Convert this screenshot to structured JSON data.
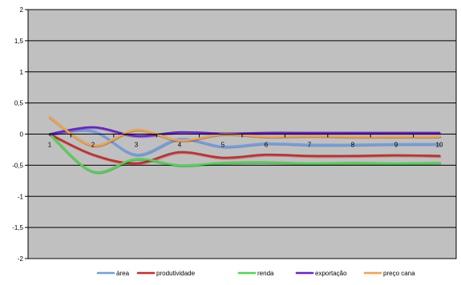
{
  "chart_data": {
    "type": "line",
    "title": "",
    "xlabel": "",
    "ylabel": "",
    "ylim": [
      -2,
      2
    ],
    "yticks": [
      "2",
      "1,5",
      "1",
      "0,5",
      "0",
      "-0,5",
      "-1",
      "-1,5",
      "-2"
    ],
    "categories": [
      "1",
      "2",
      "3",
      "4",
      "5",
      "6",
      "7",
      "8",
      "9",
      "10"
    ],
    "grid": true,
    "plot_background": "#c0c0c0",
    "legend_position": "bottom",
    "series": [
      {
        "name": "área",
        "color": "#6d9eeb",
        "values": [
          0,
          0.05,
          -0.33,
          -0.08,
          -0.2,
          -0.15,
          -0.17,
          -0.17,
          -0.16,
          -0.16
        ]
      },
      {
        "name": "produtividade",
        "color": "#cc2a2a",
        "values": [
          0,
          -0.33,
          -0.47,
          -0.29,
          -0.38,
          -0.33,
          -0.35,
          -0.35,
          -0.34,
          -0.35
        ]
      },
      {
        "name": "renda",
        "color": "#4cd84c",
        "values": [
          0,
          -0.6,
          -0.4,
          -0.5,
          -0.46,
          -0.45,
          -0.47,
          -0.46,
          -0.47,
          -0.46
        ]
      },
      {
        "name": "exportação",
        "color": "#6a1fd6",
        "values": [
          0,
          0.11,
          -0.03,
          0.03,
          0.01,
          0.02,
          0.02,
          0.02,
          0.02,
          0.02
        ]
      },
      {
        "name": "preço cana",
        "color": "#f5a04a",
        "values": [
          0.27,
          -0.18,
          0.07,
          -0.1,
          0,
          -0.04,
          -0.03,
          -0.04,
          -0.04,
          -0.04
        ]
      }
    ]
  }
}
